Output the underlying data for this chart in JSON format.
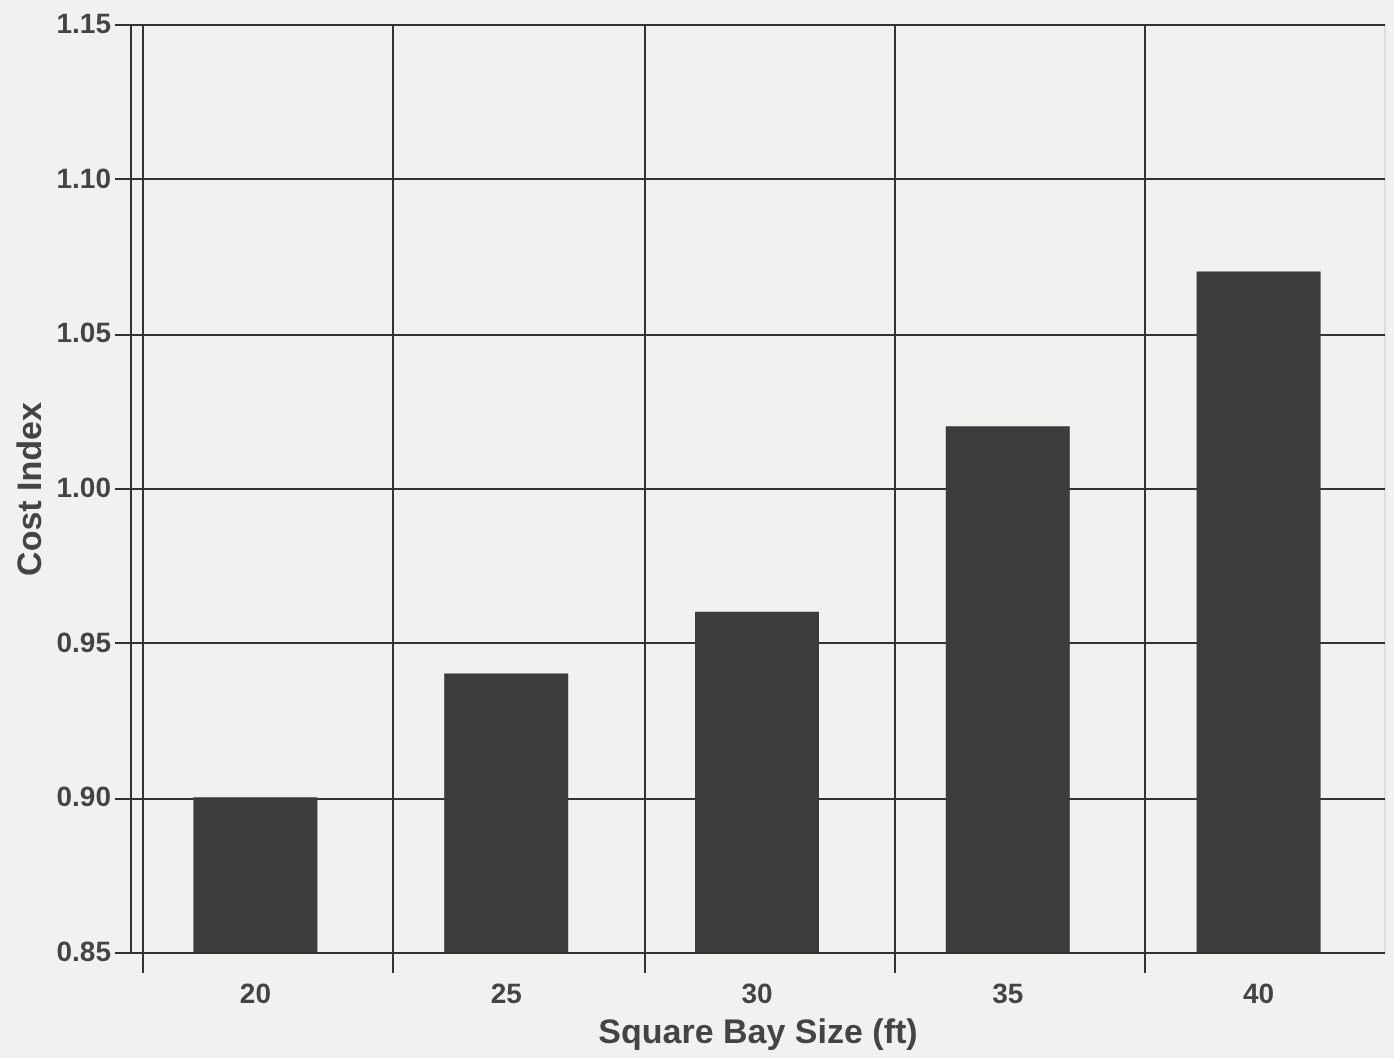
{
  "chart_data": {
    "type": "bar",
    "xlabel": "Square Bay Size (ft)",
    "ylabel": "Cost Index",
    "categories": [
      "20",
      "25",
      "30",
      "35",
      "40"
    ],
    "values": [
      0.9,
      0.94,
      0.96,
      1.02,
      1.07
    ],
    "color": "#3c3c3c",
    "ylim": [
      0.85,
      1.15
    ],
    "yticks": [
      0.85,
      {
        "value": 0.9,
        "label": "0.90"
      },
      0.95,
      {
        "value": 1.0,
        "label": "1.00"
      },
      1.05,
      {
        "value": 1.1,
        "label": "1.10"
      },
      1.15
    ],
    "grid": true
  }
}
